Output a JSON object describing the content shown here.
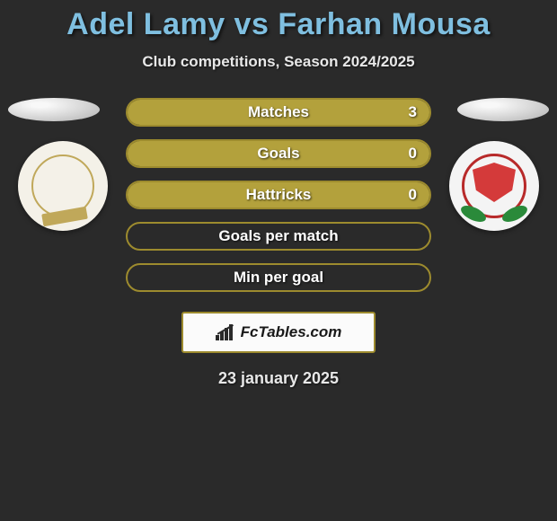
{
  "title": "Adel Lamy vs Farhan Mousa",
  "subtitle": "Club competitions, Season 2024/2025",
  "date": "23 january 2025",
  "brand": "FcTables.com",
  "colors": {
    "title": "#7fbfe0",
    "bar_border": "#9d8b2e",
    "bar_fill": "#b3a13c",
    "bar_border_empty": "#9d8b2e",
    "background": "#2a2a2a",
    "text": "#e8e8e8"
  },
  "stats": [
    {
      "label": "Matches",
      "value": "3",
      "fill": 1.0
    },
    {
      "label": "Goals",
      "value": "0",
      "fill": 1.0
    },
    {
      "label": "Hattricks",
      "value": "0",
      "fill": 1.0
    },
    {
      "label": "Goals per match",
      "value": "",
      "fill": 0.0
    },
    {
      "label": "Min per goal",
      "value": "",
      "fill": 0.0
    }
  ],
  "players": {
    "left": {
      "name": "Adel Lamy"
    },
    "right": {
      "name": "Farhan Mousa"
    }
  }
}
